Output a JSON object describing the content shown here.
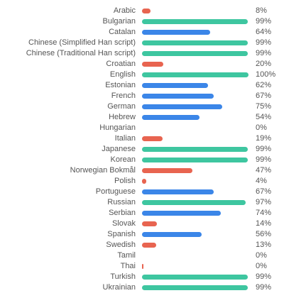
{
  "colors": {
    "high": "#3ec6a0",
    "medium": "#3b86e8",
    "low": "#e86450"
  },
  "languages": [
    {
      "name": "Arabic",
      "percent_label": "8%",
      "value": 8,
      "tier": "low"
    },
    {
      "name": "Bulgarian",
      "percent_label": "99%",
      "value": 99,
      "tier": "high"
    },
    {
      "name": "Catalan",
      "percent_label": "64%",
      "value": 64,
      "tier": "medium"
    },
    {
      "name": "Chinese (Simplified Han script)",
      "percent_label": "99%",
      "value": 99,
      "tier": "high"
    },
    {
      "name": "Chinese (Traditional Han script)",
      "percent_label": "99%",
      "value": 99,
      "tier": "high"
    },
    {
      "name": "Croatian",
      "percent_label": "20%",
      "value": 20,
      "tier": "low"
    },
    {
      "name": "English",
      "percent_label": "100%",
      "value": 100,
      "tier": "high"
    },
    {
      "name": "Estonian",
      "percent_label": "62%",
      "value": 62,
      "tier": "medium"
    },
    {
      "name": "French",
      "percent_label": "67%",
      "value": 67,
      "tier": "medium"
    },
    {
      "name": "German",
      "percent_label": "75%",
      "value": 75,
      "tier": "medium"
    },
    {
      "name": "Hebrew",
      "percent_label": "54%",
      "value": 54,
      "tier": "medium"
    },
    {
      "name": "Hungarian",
      "percent_label": "0%",
      "value": 0,
      "tier": "low"
    },
    {
      "name": "Italian",
      "percent_label": "19%",
      "value": 19,
      "tier": "low"
    },
    {
      "name": "Japanese",
      "percent_label": "99%",
      "value": 99,
      "tier": "high"
    },
    {
      "name": "Korean",
      "percent_label": "99%",
      "value": 99,
      "tier": "high"
    },
    {
      "name": "Norwegian Bokmål",
      "percent_label": "47%",
      "value": 47,
      "tier": "low"
    },
    {
      "name": "Polish",
      "percent_label": "4%",
      "value": 4,
      "tier": "low"
    },
    {
      "name": "Portuguese",
      "percent_label": "67%",
      "value": 67,
      "tier": "medium"
    },
    {
      "name": "Russian",
      "percent_label": "97%",
      "value": 97,
      "tier": "high"
    },
    {
      "name": "Serbian",
      "percent_label": "74%",
      "value": 74,
      "tier": "medium"
    },
    {
      "name": "Slovak",
      "percent_label": "14%",
      "value": 14,
      "tier": "low"
    },
    {
      "name": "Spanish",
      "percent_label": "56%",
      "value": 56,
      "tier": "medium"
    },
    {
      "name": "Swedish",
      "percent_label": "13%",
      "value": 13,
      "tier": "low"
    },
    {
      "name": "Tamil",
      "percent_label": "0%",
      "value": 0,
      "tier": "low"
    },
    {
      "name": "Thai",
      "percent_label": "0%",
      "value": 0,
      "tier": "low"
    },
    {
      "name": "Turkish",
      "percent_label": "99%",
      "value": 99,
      "tier": "high"
    },
    {
      "name": "Ukrainian",
      "percent_label": "99%",
      "value": 99,
      "tier": "high"
    }
  ]
}
